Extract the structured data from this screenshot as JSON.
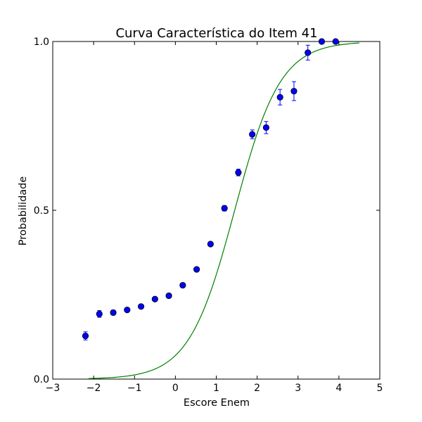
{
  "chart_data": {
    "type": "scatter",
    "title": "Curva Característica do Item 41",
    "xlabel": "Escore Enem",
    "ylabel": "Probabilidade",
    "xlim": [
      -3,
      5
    ],
    "ylim": [
      0,
      1
    ],
    "x_ticks": [
      {
        "value": -3,
        "label": "−3"
      },
      {
        "value": -2,
        "label": "−2"
      },
      {
        "value": -1,
        "label": "−1"
      },
      {
        "value": 0,
        "label": "0"
      },
      {
        "value": 1,
        "label": "1"
      },
      {
        "value": 2,
        "label": "2"
      },
      {
        "value": 3,
        "label": "3"
      },
      {
        "value": 4,
        "label": "4"
      },
      {
        "value": 5,
        "label": "5"
      }
    ],
    "y_ticks": [
      {
        "value": 0,
        "label": "0.0"
      },
      {
        "value": 0.5,
        "label": "0.5"
      },
      {
        "value": 1,
        "label": "1.0"
      }
    ],
    "grid": false,
    "series": [
      {
        "kind": "points_with_error_bars",
        "color": "#0000ff",
        "points": [
          {
            "x": -2.2,
            "y": 0.128,
            "err": 0.012
          },
          {
            "x": -1.86,
            "y": 0.193,
            "err": 0.01
          },
          {
            "x": -1.52,
            "y": 0.197,
            "err": 0.007
          },
          {
            "x": -1.18,
            "y": 0.205,
            "err": 0.006
          },
          {
            "x": -0.84,
            "y": 0.215,
            "err": 0.005
          },
          {
            "x": -0.5,
            "y": 0.237,
            "err": 0.004
          },
          {
            "x": -0.16,
            "y": 0.247,
            "err": 0.004
          },
          {
            "x": 0.18,
            "y": 0.278,
            "err": 0.004
          },
          {
            "x": 0.52,
            "y": 0.325,
            "err": 0.005
          },
          {
            "x": 0.86,
            "y": 0.4,
            "err": 0.006
          },
          {
            "x": 1.2,
            "y": 0.506,
            "err": 0.008
          },
          {
            "x": 1.54,
            "y": 0.612,
            "err": 0.01
          },
          {
            "x": 1.88,
            "y": 0.725,
            "err": 0.013
          },
          {
            "x": 2.22,
            "y": 0.745,
            "err": 0.018
          },
          {
            "x": 2.56,
            "y": 0.835,
            "err": 0.023
          },
          {
            "x": 2.9,
            "y": 0.853,
            "err": 0.028
          },
          {
            "x": 3.24,
            "y": 0.967,
            "err": 0.022
          },
          {
            "x": 3.58,
            "y": 1.0,
            "err": 0.004
          },
          {
            "x": 3.92,
            "y": 1.0,
            "err": 0.004
          }
        ]
      },
      {
        "kind": "line",
        "color": "#008000",
        "model": {
          "type": "3pl_logistic",
          "a": 1.05,
          "b": 1.45,
          "c": 0.0
        },
        "x_range": [
          -2.12,
          4.5
        ]
      }
    ]
  }
}
